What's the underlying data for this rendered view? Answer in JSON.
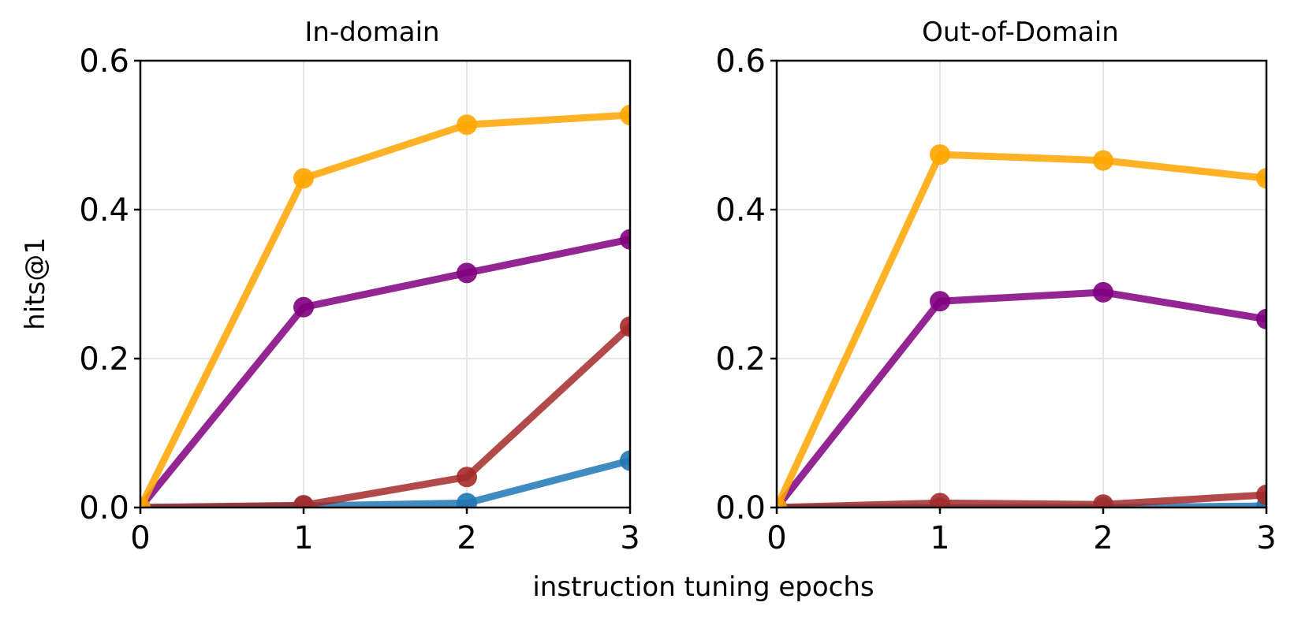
{
  "figure": {
    "xlabel": "instruction tuning epochs",
    "ylabel": "hits@1"
  },
  "chart_data": [
    {
      "type": "line",
      "title": "In-domain",
      "xlabel": "instruction tuning epochs",
      "ylabel": "hits@1",
      "x": [
        0,
        1,
        2,
        3
      ],
      "xlim": [
        0,
        3
      ],
      "ylim": [
        0,
        0.6
      ],
      "xticks": [
        "0",
        "1",
        "2",
        "3"
      ],
      "yticks": [
        "0.0",
        "0.2",
        "0.4",
        "0.6"
      ],
      "grid": true,
      "series": [
        {
          "color": "#1f77b4",
          "values": [
            0.0,
            0.002,
            0.006,
            0.063
          ]
        },
        {
          "color": "#a52a2a",
          "values": [
            0.0,
            0.003,
            0.041,
            0.243
          ]
        },
        {
          "color": "#800080",
          "values": [
            0.0,
            0.269,
            0.315,
            0.36
          ]
        },
        {
          "color": "#ffa500",
          "values": [
            0.0,
            0.442,
            0.514,
            0.527
          ]
        }
      ]
    },
    {
      "type": "line",
      "title": "Out-of-Domain",
      "xlabel": "instruction tuning epochs",
      "ylabel": "",
      "x": [
        0,
        1,
        2,
        3
      ],
      "xlim": [
        0,
        3
      ],
      "ylim": [
        0,
        0.6
      ],
      "xticks": [
        "0",
        "1",
        "2",
        "3"
      ],
      "yticks": [
        "0.0",
        "0.2",
        "0.4",
        "0.6"
      ],
      "grid": true,
      "series": [
        {
          "color": "#1f77b4",
          "values": [
            0.0,
            0.0,
            0.0,
            0.002
          ]
        },
        {
          "color": "#a52a2a",
          "values": [
            0.0,
            0.006,
            0.004,
            0.017
          ]
        },
        {
          "color": "#800080",
          "values": [
            0.0,
            0.277,
            0.289,
            0.253
          ]
        },
        {
          "color": "#ffa500",
          "values": [
            0.0,
            0.474,
            0.466,
            0.442
          ]
        }
      ]
    }
  ]
}
